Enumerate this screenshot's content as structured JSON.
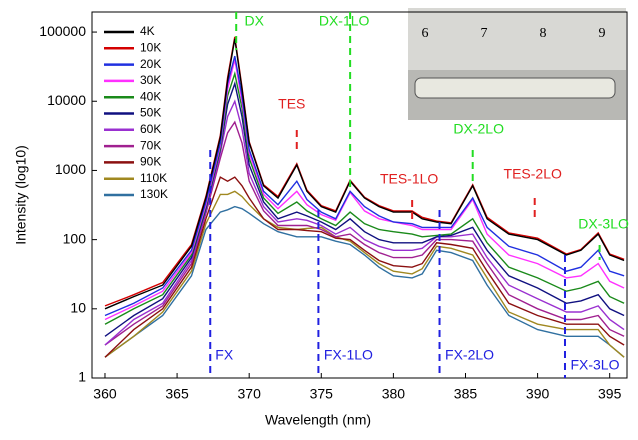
{
  "chart_data": {
    "type": "line",
    "x_label": "Wavelength (nm)",
    "y_label": "Intensity (log10)",
    "y_scale": "log",
    "xlim": [
      359.1,
      396.2
    ],
    "xticks": [
      360,
      365,
      370,
      375,
      380,
      385,
      390,
      395
    ],
    "ylim": [
      1,
      195000
    ],
    "yticks": [
      1,
      10,
      100,
      1000,
      10000,
      100000
    ],
    "legend": "upper left",
    "x": [
      360,
      362,
      364,
      366,
      367,
      368,
      368.5,
      369,
      369.5,
      370,
      371,
      372,
      373.3,
      374,
      375,
      376,
      377,
      378,
      379,
      380,
      381.3,
      382,
      383,
      384,
      385.5,
      386.5,
      388,
      390,
      392,
      393,
      394.2,
      395,
      396
    ],
    "series": [
      {
        "name": "4K",
        "color": "#000000",
        "values": [
          10,
          15,
          22,
          80,
          400,
          3000,
          20000,
          80000,
          15000,
          2500,
          600,
          400,
          1200,
          500,
          300,
          250,
          700,
          400,
          300,
          250,
          250,
          200,
          180,
          170,
          600,
          200,
          120,
          100,
          60,
          70,
          120,
          60,
          50
        ]
      },
      {
        "name": "10K",
        "color": "#d40000",
        "values": [
          11,
          16,
          24,
          85,
          420,
          3200,
          22000,
          85000,
          16000,
          2600,
          620,
          420,
          1250,
          520,
          310,
          260,
          720,
          410,
          310,
          260,
          260,
          210,
          185,
          175,
          620,
          210,
          125,
          105,
          62,
          72,
          125,
          62,
          52
        ]
      },
      {
        "name": "20K",
        "color": "#2030e0",
        "values": [
          8,
          12,
          20,
          70,
          350,
          2500,
          18000,
          45000,
          12000,
          2000,
          500,
          320,
          700,
          380,
          250,
          200,
          500,
          300,
          220,
          180,
          170,
          150,
          150,
          150,
          400,
          150,
          80,
          60,
          35,
          40,
          70,
          35,
          30
        ]
      },
      {
        "name": "30K",
        "color": "#ff30ff",
        "values": [
          7,
          11,
          18,
          65,
          320,
          2300,
          15000,
          40000,
          10000,
          1800,
          450,
          280,
          500,
          320,
          230,
          190,
          480,
          260,
          200,
          180,
          160,
          140,
          140,
          140,
          380,
          120,
          60,
          45,
          28,
          30,
          45,
          25,
          20
        ]
      },
      {
        "name": "40K",
        "color": "#1a8a1a",
        "values": [
          6,
          10,
          16,
          60,
          300,
          2100,
          12000,
          25000,
          8000,
          1500,
          400,
          240,
          350,
          260,
          200,
          160,
          250,
          170,
          140,
          130,
          120,
          110,
          115,
          120,
          200,
          90,
          40,
          28,
          18,
          20,
          25,
          15,
          12
        ]
      },
      {
        "name": "50K",
        "color": "#101080",
        "values": [
          4,
          8,
          14,
          55,
          280,
          2000,
          9000,
          18000,
          6000,
          1200,
          350,
          200,
          250,
          220,
          180,
          140,
          200,
          130,
          100,
          90,
          90,
          90,
          110,
          115,
          150,
          70,
          30,
          20,
          12,
          13,
          16,
          10,
          8
        ]
      },
      {
        "name": "60K",
        "color": "#9a30d0",
        "values": [
          3,
          7,
          12,
          50,
          260,
          1800,
          6000,
          10000,
          4000,
          900,
          300,
          180,
          200,
          190,
          160,
          120,
          150,
          100,
          80,
          70,
          70,
          75,
          110,
          110,
          120,
          55,
          22,
          14,
          9,
          9,
          11,
          7,
          5
        ]
      },
      {
        "name": "70K",
        "color": "#a02090",
        "values": [
          3,
          6,
          11,
          45,
          240,
          1500,
          3500,
          5000,
          2500,
          700,
          260,
          160,
          160,
          160,
          140,
          110,
          120,
          85,
          65,
          55,
          55,
          60,
          100,
          100,
          95,
          45,
          16,
          10,
          7,
          7,
          8,
          5,
          4
        ]
      },
      {
        "name": "90K",
        "color": "#8b1010",
        "values": [
          2,
          5,
          10,
          40,
          200,
          800,
          700,
          800,
          600,
          400,
          200,
          140,
          140,
          135,
          130,
          105,
          100,
          70,
          50,
          42,
          40,
          45,
          90,
          85,
          75,
          35,
          12,
          8,
          6,
          6,
          6,
          4,
          3
        ]
      },
      {
        "name": "110K",
        "color": "#a08820",
        "values": [
          2,
          4,
          9,
          35,
          170,
          450,
          450,
          500,
          420,
          320,
          200,
          150,
          140,
          145,
          150,
          110,
          95,
          65,
          45,
          35,
          32,
          38,
          80,
          75,
          60,
          28,
          9,
          6,
          5,
          5,
          5,
          3,
          2
        ]
      },
      {
        "name": "130K",
        "color": "#3070a0",
        "values": [
          2,
          4,
          8,
          30,
          140,
          250,
          270,
          300,
          280,
          240,
          170,
          130,
          110,
          110,
          110,
          95,
          85,
          60,
          40,
          30,
          28,
          32,
          70,
          65,
          50,
          22,
          8,
          5,
          4,
          4,
          4,
          3,
          2
        ]
      }
    ],
    "annotations": [
      {
        "label": "DX",
        "x": 369.1,
        "color": "#22dd22"
      },
      {
        "label": "DX-1LO",
        "x": 377.0,
        "color": "#22dd22"
      },
      {
        "label": "DX-2LO",
        "x": 385.5,
        "color": "#22dd22"
      },
      {
        "label": "DX-3LO",
        "x": 394.3,
        "color": "#22dd22"
      },
      {
        "label": "TES",
        "x": 373.3,
        "color": "#e02020"
      },
      {
        "label": "TES-1LO",
        "x": 381.3,
        "color": "#e02020"
      },
      {
        "label": "TES-2LO",
        "x": 389.8,
        "color": "#e02020"
      },
      {
        "label": "FX",
        "x": 367.3,
        "color": "#2020e0"
      },
      {
        "label": "FX-1LO",
        "x": 374.8,
        "color": "#2020e0"
      },
      {
        "label": "FX-2LO",
        "x": 383.2,
        "color": "#2020e0"
      },
      {
        "label": "FX-3LO",
        "x": 391.9,
        "color": "#2020e0"
      }
    ],
    "inset_labels": [
      "6",
      "7",
      "8",
      "9"
    ]
  }
}
